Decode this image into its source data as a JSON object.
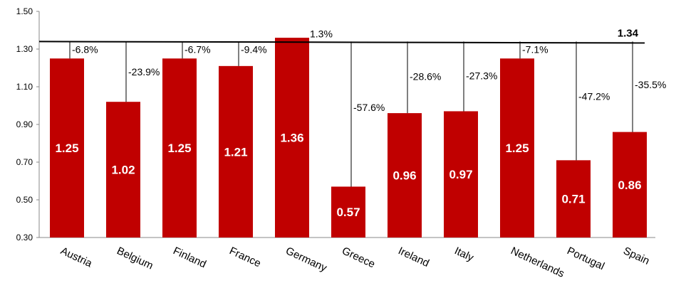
{
  "chart_data": {
    "type": "bar",
    "categories": [
      "Austria",
      "Belgium",
      "Finland",
      "France",
      "Germany",
      "Greece",
      "Ireland",
      "Italy",
      "Netherlands",
      "Portugal",
      "Spain"
    ],
    "values": [
      1.25,
      1.02,
      1.25,
      1.21,
      1.36,
      0.57,
      0.96,
      0.97,
      1.25,
      0.71,
      0.86
    ],
    "value_labels": [
      "1.25",
      "1.02",
      "1.25",
      "1.21",
      "1.36",
      "0.57",
      "0.96",
      "0.97",
      "1.25",
      "0.71",
      "0.86"
    ],
    "pct_labels": [
      "-6.8%",
      "-23.9%",
      "-6.7%",
      "-9.4%",
      "1.3%",
      "-57.6%",
      "-28.6%",
      "-27.3%",
      "-7.1%",
      "-47.2%",
      "-35.5%"
    ],
    "reference_line": {
      "value": 1.34,
      "label": "1.34"
    },
    "yticks": [
      "0.30",
      "0.50",
      "0.70",
      "0.90",
      "1.10",
      "1.30",
      "1.50"
    ],
    "ylim": [
      0.3,
      1.5
    ],
    "bar_color": "#c00000",
    "grid": false
  }
}
